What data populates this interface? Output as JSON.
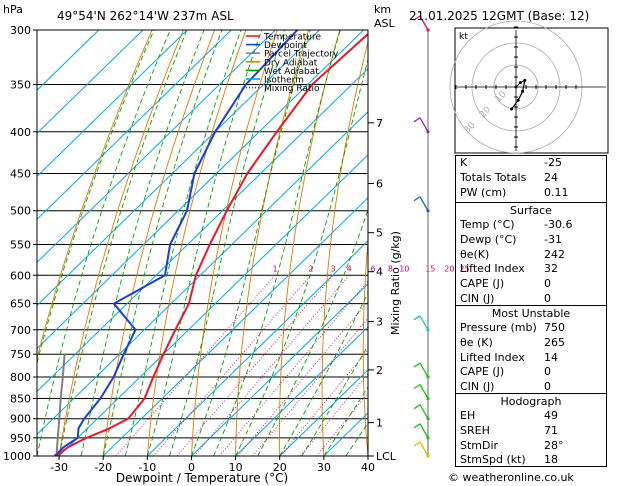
{
  "header": {
    "hpa_unit": "hPa",
    "location": "49°54'N  262°14'W  237m  ASL",
    "km_unit": "km",
    "asl_unit": "ASL",
    "datetime": "21.01.2025  12GMT  (Base: 12)"
  },
  "chart_data": {
    "type": "skew-t",
    "xlabel": "Dewpoint / Temperature (°C)",
    "ylabel_right": "Mixing Ratio (g/kg)",
    "pressure_levels": [
      300,
      350,
      400,
      450,
      500,
      550,
      600,
      650,
      700,
      750,
      800,
      850,
      900,
      950,
      1000
    ],
    "temperature_ticks": [
      -30,
      -20,
      -10,
      0,
      10,
      20,
      30,
      40
    ],
    "xlim": [
      -35,
      40
    ],
    "plim": [
      1000,
      300
    ],
    "skew_deg_per_log": 99,
    "height_km": [
      {
        "km": "7",
        "p": 390
      },
      {
        "km": "6",
        "p": 463
      },
      {
        "km": "5",
        "p": 532
      },
      {
        "km": "4",
        "p": 594
      },
      {
        "km": "3",
        "p": 684
      },
      {
        "km": "2",
        "p": 784
      },
      {
        "km": "1",
        "p": 910
      },
      {
        "km": "LCL",
        "p": 1000
      }
    ],
    "mixing_ratio_labels": [
      {
        "label": "1",
        "w": 1
      },
      {
        "label": "2",
        "w": 2
      },
      {
        "label": "3",
        "w": 3
      },
      {
        "label": "4",
        "w": 4
      },
      {
        "label": "6",
        "w": 6
      },
      {
        "label": "8",
        "w": 8
      },
      {
        "label": "10",
        "w": 10
      },
      {
        "label": "15",
        "w": 15
      },
      {
        "label": "20",
        "w": 20
      },
      {
        "label": "25",
        "w": 25
      }
    ],
    "legend": [
      {
        "name": "Temperature",
        "color": "#e8192c",
        "style": "solid"
      },
      {
        "name": "Dewpoint",
        "color": "#1a3fd8",
        "style": "solid"
      },
      {
        "name": "Parcel Trajectory",
        "color": "#808080",
        "style": "solid"
      },
      {
        "name": "Dry Adiabat",
        "color": "#e07a00",
        "style": "solid"
      },
      {
        "name": "Wet Adiabat",
        "color": "#00a000",
        "style": "solid"
      },
      {
        "name": "Isotherm",
        "color": "#00a8e8",
        "style": "solid"
      },
      {
        "name": "Mixing Ratio",
        "color": "#d4006a",
        "style": "dotted"
      }
    ],
    "temperature_profile": [
      {
        "p": 1000,
        "t": -30.6
      },
      {
        "p": 975,
        "t": -30
      },
      {
        "p": 950,
        "t": -28
      },
      {
        "p": 925,
        "t": -25
      },
      {
        "p": 900,
        "t": -23
      },
      {
        "p": 850,
        "t": -24
      },
      {
        "p": 800,
        "t": -27
      },
      {
        "p": 750,
        "t": -30
      },
      {
        "p": 700,
        "t": -33
      },
      {
        "p": 650,
        "t": -36
      },
      {
        "p": 600,
        "t": -41
      },
      {
        "p": 550,
        "t": -45
      },
      {
        "p": 500,
        "t": -49
      },
      {
        "p": 450,
        "t": -53
      },
      {
        "p": 400,
        "t": -56
      },
      {
        "p": 350,
        "t": -59
      },
      {
        "p": 300,
        "t": -58
      }
    ],
    "dewpoint_profile": [
      {
        "p": 1000,
        "t": -31
      },
      {
        "p": 975,
        "t": -31
      },
      {
        "p": 950,
        "t": -30
      },
      {
        "p": 925,
        "t": -32
      },
      {
        "p": 900,
        "t": -33
      },
      {
        "p": 850,
        "t": -34
      },
      {
        "p": 800,
        "t": -36
      },
      {
        "p": 750,
        "t": -39
      },
      {
        "p": 700,
        "t": -42
      },
      {
        "p": 650,
        "t": -53
      },
      {
        "p": 600,
        "t": -48
      },
      {
        "p": 550,
        "t": -54
      },
      {
        "p": 500,
        "t": -58
      },
      {
        "p": 450,
        "t": -65
      },
      {
        "p": 400,
        "t": -70
      },
      {
        "p": 350,
        "t": -74
      },
      {
        "p": 300,
        "t": -75
      }
    ],
    "parcel_profile": [
      {
        "p": 1000,
        "t": -30.6
      },
      {
        "p": 950,
        "t": -34.5
      },
      {
        "p": 900,
        "t": -38.6
      },
      {
        "p": 850,
        "t": -43
      },
      {
        "p": 800,
        "t": -47.5
      },
      {
        "p": 750,
        "t": -52.4
      }
    ],
    "wind_barbs": [
      {
        "p": 1000,
        "color": "#c8c800"
      },
      {
        "p": 950,
        "color": "#20c020"
      },
      {
        "p": 900,
        "color": "#20c020"
      },
      {
        "p": 850,
        "color": "#20c020"
      },
      {
        "p": 800,
        "color": "#20c020"
      },
      {
        "p": 700,
        "color": "#20c0c0"
      },
      {
        "p": 500,
        "color": "#2060e0"
      },
      {
        "p": 400,
        "color": "#a020c0"
      },
      {
        "p": 300,
        "color": "#e01060"
      }
    ]
  },
  "hodograph": {
    "label": "kt",
    "rings": [
      {
        "label": "10"
      },
      {
        "label": "20"
      },
      {
        "label": "30"
      }
    ],
    "trace": [
      {
        "u": 0,
        "v": 0
      },
      {
        "u": 2,
        "v": 2
      },
      {
        "u": 4,
        "v": 3
      },
      {
        "u": 3,
        "v": -2
      },
      {
        "u": 1,
        "v": -6
      },
      {
        "u": -2,
        "v": -10
      }
    ]
  },
  "indices": {
    "rows": [
      {
        "label": "K",
        "value": "-25"
      },
      {
        "label": "Totals Totals",
        "value": "24"
      },
      {
        "label": "PW (cm)",
        "value": "0.11"
      }
    ]
  },
  "surface": {
    "title": "Surface",
    "rows": [
      {
        "label": "Temp (°C)",
        "value": "-30.6"
      },
      {
        "label": "Dewp (°C)",
        "value": "-31"
      },
      {
        "label": "θe(K)",
        "value": "242"
      },
      {
        "label": "Lifted Index",
        "value": "32"
      },
      {
        "label": "CAPE (J)",
        "value": "0"
      },
      {
        "label": "CIN (J)",
        "value": "0"
      }
    ]
  },
  "most_unstable": {
    "title": "Most Unstable",
    "rows": [
      {
        "label": "Pressure (mb)",
        "value": "750"
      },
      {
        "label": "θe (K)",
        "value": "265"
      },
      {
        "label": "Lifted Index",
        "value": "14"
      },
      {
        "label": "CAPE (J)",
        "value": "0"
      },
      {
        "label": "CIN (J)",
        "value": "0"
      }
    ]
  },
  "hodo_table": {
    "title": "Hodograph",
    "rows": [
      {
        "label": "EH",
        "value": "49"
      },
      {
        "label": "SREH",
        "value": "71"
      },
      {
        "label": "StmDir",
        "value": "28°"
      },
      {
        "label": "StmSpd (kt)",
        "value": "18"
      }
    ]
  },
  "credit": "© weatheronline.co.uk"
}
